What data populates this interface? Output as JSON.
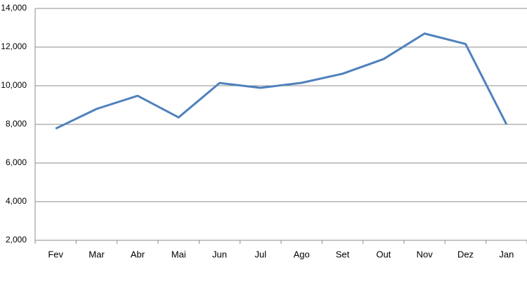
{
  "chart_data": {
    "type": "line",
    "categories": [
      "Fev",
      "Mar",
      "Abr",
      "Mai",
      "Jun",
      "Jul",
      "Ago",
      "Set",
      "Out",
      "Nov",
      "Dez",
      "Jan"
    ],
    "series": [
      {
        "color": "#4f81bd",
        "values": [
          7780,
          8800,
          9480,
          8360,
          10140,
          9890,
          10150,
          10620,
          11380,
          12700,
          12160,
          8000
        ]
      }
    ],
    "ylim": [
      2000,
      14000
    ],
    "yticks": [
      {
        "value": 2000,
        "label": "2,000"
      },
      {
        "value": 4000,
        "label": "4,000"
      },
      {
        "value": 6000,
        "label": "6,000"
      },
      {
        "value": 8000,
        "label": "8,000"
      },
      {
        "value": 10000,
        "label": "10,000"
      },
      {
        "value": 12000,
        "label": "12,000"
      },
      {
        "value": 14000,
        "label": "14,000"
      }
    ],
    "grid": true
  }
}
